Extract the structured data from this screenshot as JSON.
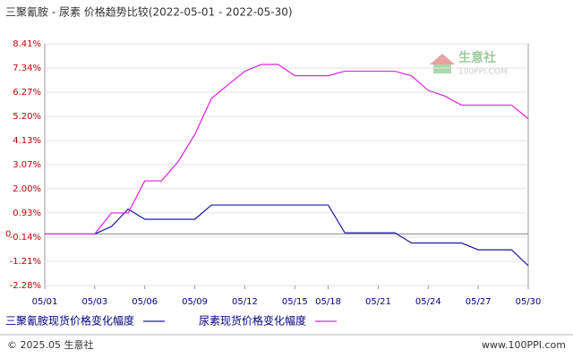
{
  "chart_data": {
    "type": "line",
    "title": "三聚氰胺 - 尿素 价格趋势比较(2022-05-01 - 2022-05-30)",
    "watermark": "生意社",
    "watermark_sub": "100PPI.COM",
    "footer_left": "© 2025.05 生意社",
    "footer_right": "www.100PPI.com",
    "categories": [
      "05/01",
      null,
      null,
      "05/03",
      null,
      null,
      "05/06",
      null,
      null,
      "05/09",
      null,
      null,
      "05/12",
      null,
      null,
      "05/15",
      null,
      "05/18",
      null,
      null,
      "05/21",
      null,
      null,
      "05/24",
      null,
      null,
      "05/27",
      null,
      null,
      "05/30"
    ],
    "series": [
      {
        "name": "三聚氰胺现货价格变化幅度",
        "color": "#1a1aa0",
        "values": [
          0,
          0,
          0,
          0,
          0.33,
          1.1,
          0.65,
          0.65,
          0.65,
          0.65,
          1.28,
          1.28,
          1.28,
          1.28,
          1.28,
          1.28,
          1.28,
          1.28,
          0.05,
          0.05,
          0.05,
          0.05,
          -0.4,
          -0.4,
          -0.4,
          -0.4,
          -0.7,
          -0.7,
          -0.7,
          -1.4
        ]
      },
      {
        "name": "尿素现货价格变化幅度",
        "color": "#e020e0",
        "values": [
          0,
          0,
          0,
          0,
          0.93,
          0.93,
          2.35,
          2.35,
          3.2,
          4.4,
          6.0,
          6.6,
          7.2,
          7.5,
          7.5,
          7.0,
          7.0,
          7.0,
          7.2,
          7.2,
          7.2,
          7.2,
          7.0,
          6.35,
          6.1,
          5.7,
          5.7,
          5.7,
          5.7,
          5.1
        ]
      }
    ],
    "ylim": [
      -2.28,
      8.41
    ],
    "yticks": [
      {
        "value": 8.41,
        "label": "8.41%"
      },
      {
        "value": 7.34,
        "label": "7.34%"
      },
      {
        "value": 6.27,
        "label": "6.27%"
      },
      {
        "value": 5.2,
        "label": "5.20%"
      },
      {
        "value": 4.13,
        "label": "4.13%"
      },
      {
        "value": 3.07,
        "label": "3.07%"
      },
      {
        "value": 2.0,
        "label": "2.00%"
      },
      {
        "value": 0.93,
        "label": "0.93%"
      },
      0,
      {
        "value": -0.14,
        "label": "-0.14%"
      },
      {
        "value": -1.21,
        "label": "-1.21%"
      },
      {
        "value": -2.28,
        "label": "-2.28%"
      }
    ],
    "grid": true
  }
}
